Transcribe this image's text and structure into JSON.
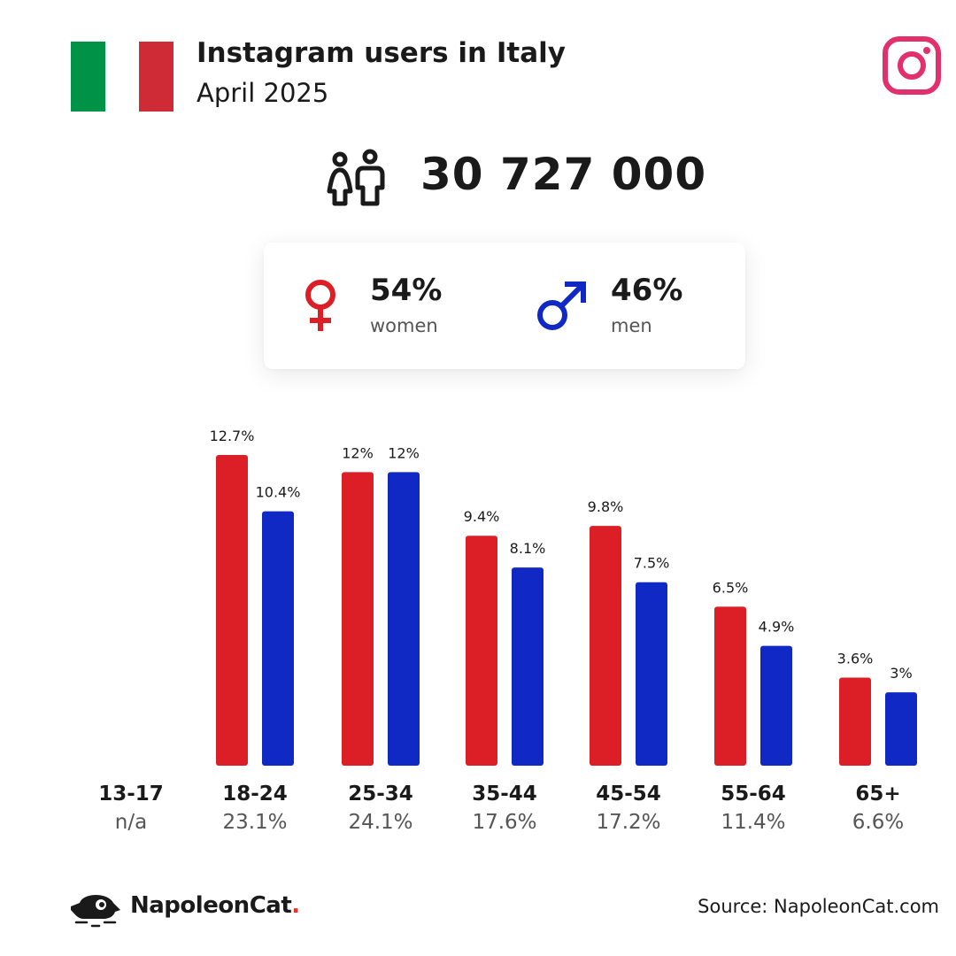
{
  "header": {
    "title": "Instagram users in Italy",
    "subtitle": "April 2025",
    "flag_colors": [
      "#009246",
      "#ffffff",
      "#ce2b37"
    ],
    "platform_icon": "instagram-icon",
    "platform_color": "#e1306c"
  },
  "total": {
    "icon": "people-icon",
    "value": "30 727 000"
  },
  "gender": {
    "female": {
      "icon": "female-icon",
      "percent": "54%",
      "label": "women",
      "color": "#dc1f26"
    },
    "male": {
      "icon": "male-icon",
      "percent": "46%",
      "label": "men",
      "color": "#1029c4"
    }
  },
  "chart_data": {
    "type": "bar",
    "categories": [
      "13-17",
      "18-24",
      "25-34",
      "35-44",
      "45-54",
      "55-64",
      "65+"
    ],
    "category_shares": [
      "n/a",
      "23.1%",
      "24.1%",
      "17.6%",
      "17.2%",
      "11.4%",
      "6.6%"
    ],
    "series": [
      {
        "values": [
          null,
          12.7,
          12,
          9.4,
          9.8,
          6.5,
          3.6
        ],
        "labels": [
          "",
          "12.7%",
          "12%",
          "9.4%",
          "9.8%",
          "6.5%",
          "3.6%"
        ],
        "color": "#dc1f26"
      },
      {
        "values": [
          null,
          10.4,
          12,
          8.1,
          7.5,
          4.9,
          3
        ],
        "labels": [
          "",
          "10.4%",
          "12%",
          "8.1%",
          "7.5%",
          "4.9%",
          "3%"
        ],
        "color": "#1029c4"
      }
    ],
    "ylim": [
      0,
      12.7
    ],
    "grid": false,
    "legend": "none"
  },
  "footer": {
    "brand_name": "NapoleonCat",
    "brand_dot": ".",
    "brand_icon": "napoleoncat-logo-icon",
    "source": "Source: NapoleonCat.com"
  }
}
